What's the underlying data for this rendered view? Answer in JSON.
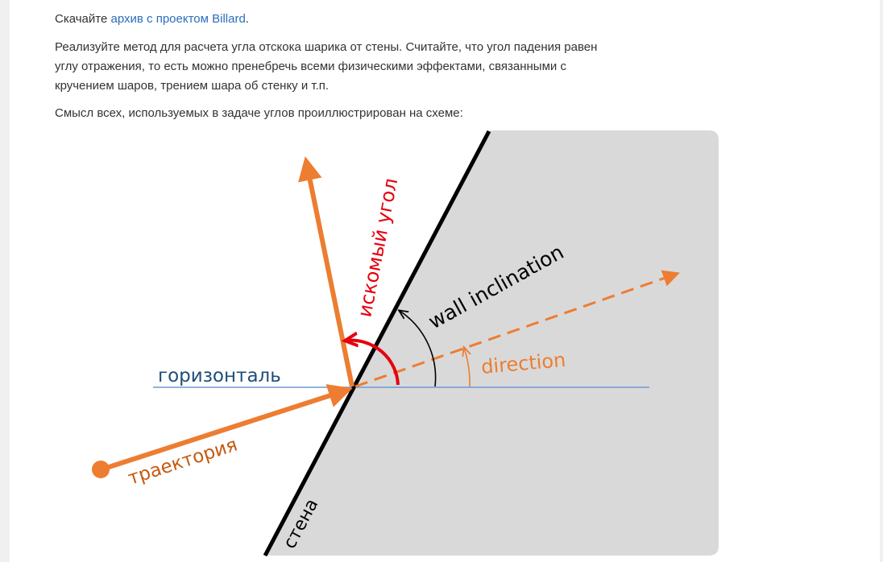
{
  "intro": {
    "prefix": "Скачайте ",
    "link_text": "архив с проектом Billard",
    "suffix": "."
  },
  "task": {
    "line1": "Реализуйте метод для расчета угла отскока шарика от стены. Считайте, что угол падения равен",
    "line2": "углу отражения, то есть можно пренебречь всеми физическими эффектами, связанными с",
    "line3": "кручением шаров, трением шара об стенку и т.п."
  },
  "explain": "Смысл всех, используемых в задаче углов проиллюстрирован на схеме:",
  "diagram": {
    "labels": {
      "horizontal": "горизонталь",
      "trajectory": "траектория",
      "wall": "стена",
      "sought_angle": "искомый угол",
      "wall_inclination": "wall inclination",
      "direction": "direction"
    },
    "colors": {
      "panel": "#d9d9d9",
      "orange": "#ed7d31",
      "red": "#e6000e",
      "blue_line": "#6c9bd2",
      "horizontal_text": "#1f4e79",
      "wall": "#000000"
    }
  }
}
